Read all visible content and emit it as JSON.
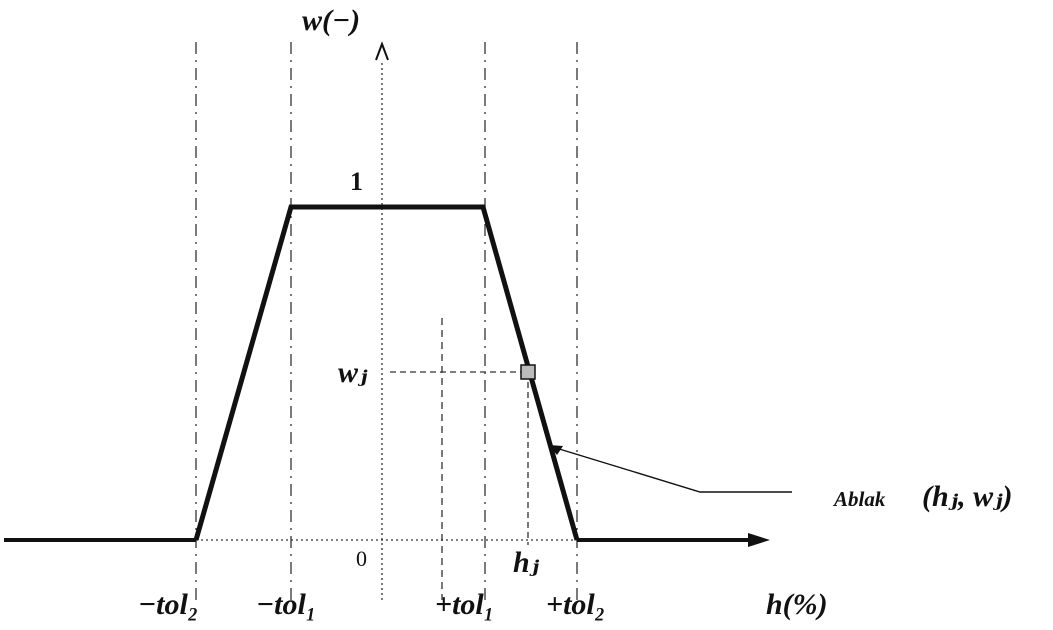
{
  "diagram": {
    "y_axis_label": "w(−)",
    "x_axis_label": "h(%)",
    "plateau_value_label": "1",
    "origin_label": "0",
    "tick_labels": {
      "neg_tol2": "−tol₂",
      "neg_tol1": "−tol₁",
      "pos_tol1": "+tol₁",
      "pos_tol2": "+tol₂"
    },
    "point_labels": {
      "wj": "wⱼ",
      "hj": "hⱼ"
    },
    "annotation": {
      "word": "Ablak",
      "pair": "(hⱼ, wⱼ)"
    },
    "colors": {
      "line": "#111111",
      "marker_fill": "#bbbbbb"
    }
  }
}
